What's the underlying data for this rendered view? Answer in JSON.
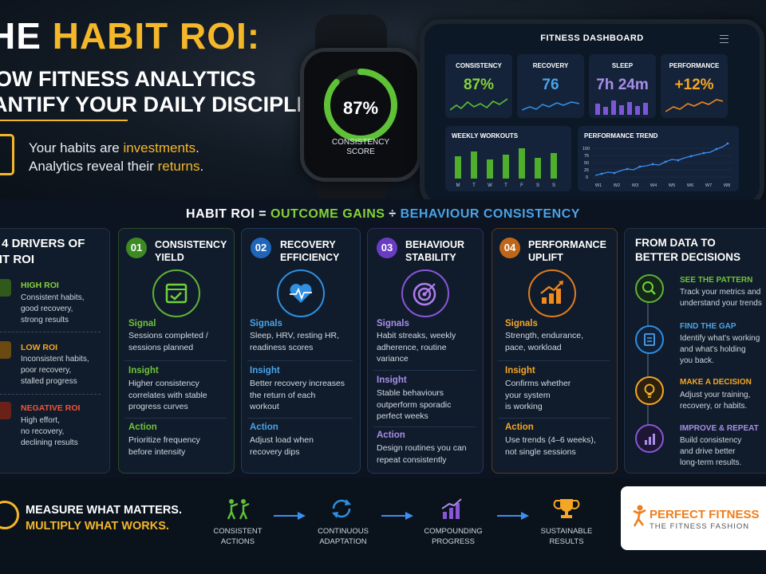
{
  "hero": {
    "title_prefix": "HE ",
    "title_highlight": "HABIT ROI:",
    "subtitle_line1": "OW FITNESS ANALYTICS",
    "subtitle_line2": "ANTIFY YOUR DAILY DISCIPLINE",
    "tagline_l1_a": "Your habits are ",
    "tagline_l1_b": "investments",
    "tagline_l1_c": ".",
    "tagline_l2_a": "Analytics reveal their ",
    "tagline_l2_b": "returns",
    "tagline_l2_c": "."
  },
  "watch": {
    "value": "87%",
    "label_line1": "CONSISTENCY",
    "label_line2": "SCORE",
    "progress": 0.87
  },
  "dashboard": {
    "title": "FITNESS DASHBOARD",
    "metrics": [
      {
        "label": "CONSISTENCY",
        "value": "87%",
        "color": "#86d13a"
      },
      {
        "label": "RECOVERY",
        "value": "76",
        "color": "#4aa3e8"
      },
      {
        "label": "SLEEP",
        "value": "7h 24m",
        "color": "#a98ee8"
      },
      {
        "label": "PERFORMANCE",
        "value": "+12%",
        "color": "#f5a623"
      }
    ],
    "weekly_title": "WEEKLY WORKOUTS",
    "weekly_days": [
      "M",
      "T",
      "W",
      "T",
      "F",
      "S",
      "S"
    ],
    "trend_title": "PERFORMANCE TREND",
    "trend_yticks": [
      "100",
      "75",
      "50",
      "25",
      "0"
    ],
    "trend_weeks": [
      "W1",
      "W2",
      "W3",
      "W4",
      "W5",
      "W6",
      "W7",
      "W8"
    ]
  },
  "formula": {
    "left": "HABIT ROI",
    "eq": " = ",
    "gains": "OUTCOME GAINS",
    "div": " ÷ ",
    "cons": "BEHAVIOUR CONSISTENCY"
  },
  "drivers": {
    "title_l1": "E 4 DRIVERS OF",
    "title_l2": "BIT ROI",
    "items": [
      {
        "heading": "HIGH ROI",
        "l1": "Consistent habits,",
        "l2": "good recovery,",
        "l3": "strong results",
        "color": "#86d13a"
      },
      {
        "heading": "LOW ROI",
        "l1": "Inconsistent habits,",
        "l2": "poor recovery,",
        "l3": "stalled progress",
        "color": "#f5a623"
      },
      {
        "heading": "NEGATIVE ROI",
        "l1": "High effort,",
        "l2": "no recovery,",
        "l3": "declining results",
        "color": "#f0533b"
      }
    ]
  },
  "columns": [
    {
      "num": "01",
      "title_l1": "CONSISTENCY",
      "title_l2": "YIELD",
      "color": "#5fb236",
      "s1": "Signal",
      "s1_l1": "Sessions completed /",
      "s1_l2": "sessions planned",
      "s1_l3": "",
      "s2": "Insight",
      "s2_l1": "Higher consistency",
      "s2_l2": "correlates with stable",
      "s2_l3": "progress curves",
      "s3": "Action",
      "s3_l1": "Prioritize frequency",
      "s3_l2": "before intensity"
    },
    {
      "num": "02",
      "title_l1": "RECOVERY",
      "title_l2": "EFFICIENCY",
      "color": "#2f8fe0",
      "s1": "Signals",
      "s1_l1": "Sleep, HRV, resting HR,",
      "s1_l2": "readiness scores",
      "s1_l3": "",
      "s2": "Insight",
      "s2_l1": "Better recovery increases",
      "s2_l2": "the return of each",
      "s2_l3": "workout",
      "s3": "Action",
      "s3_l1": "Adjust load when",
      "s3_l2": "recovery dips"
    },
    {
      "num": "03",
      "title_l1": "BEHAVIOUR",
      "title_l2": "STABILITY",
      "color": "#8a56d8",
      "s1": "Signals",
      "s1_l1": "Habit streaks, weekly",
      "s1_l2": "adherence, routine",
      "s1_l3": "variance",
      "s2": "Insight",
      "s2_l1": "Stable behaviours",
      "s2_l2": "outperform sporadic",
      "s2_l3": "perfect weeks",
      "s3": "Action",
      "s3_l1": "Design routines you can",
      "s3_l2": "repeat consistently"
    },
    {
      "num": "04",
      "title_l1": "PERFORMANCE",
      "title_l2": "UPLIFT",
      "color": "#e07a1f",
      "s1": "Signals",
      "s1_l1": "Strength, endurance,",
      "s1_l2": "pace, workload",
      "s1_l3": "",
      "s2": "Insight",
      "s2_l1": "Confirms whether",
      "s2_l2": "your system",
      "s2_l3": "is working",
      "s3": "Action",
      "s3_l1": "Use trends (4–6 weeks),",
      "s3_l2": "not single sessions"
    }
  ],
  "decisions": {
    "title_l1": "FROM DATA TO",
    "title_l2": "BETTER DECISIONS",
    "items": [
      {
        "heading": "SEE THE PATTERN",
        "l1": "Track your metrics and",
        "l2": "understand your trends",
        "l3": "",
        "color": "#5fb236"
      },
      {
        "heading": "FIND THE GAP",
        "l1": "Identify what's working",
        "l2": "and what's holding",
        "l3": "you back.",
        "color": "#2f8fe0"
      },
      {
        "heading": "MAKE A DECISION",
        "l1": "Adjust your training,",
        "l2": "recovery, or habits.",
        "l3": "",
        "color": "#f5a623"
      },
      {
        "heading": "IMPROVE & REPEAT",
        "l1": "Build consistency",
        "l2": "and drive better",
        "l3": "long-term results.",
        "color": "#8a56d8"
      }
    ]
  },
  "bottom": {
    "line1": "MEASURE WHAT MATTERS.",
    "line2": "MULTIPLY WHAT WORKS.",
    "steps": [
      {
        "l1": "CONSISTENT",
        "l2": "ACTIONS"
      },
      {
        "l1": "CONTINUOUS",
        "l2": "ADAPTATION"
      },
      {
        "l1": "COMPOUNDING",
        "l2": "PROGRESS"
      },
      {
        "l1": "SUSTAINABLE",
        "l2": "RESULTS"
      }
    ]
  },
  "logo": {
    "name": "PERFECT FITNESS",
    "tagline": "THE FITNESS FASHION"
  }
}
